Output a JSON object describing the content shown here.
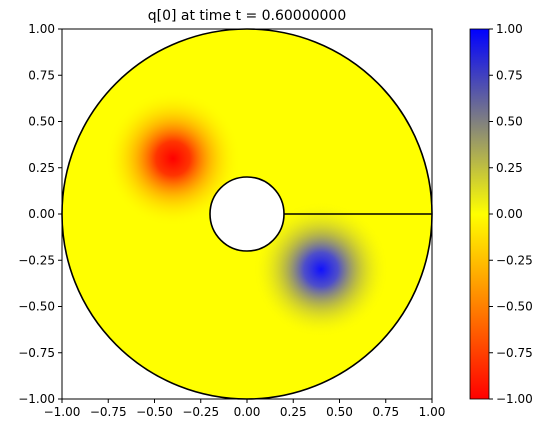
{
  "chart_data": {
    "type": "heatmap",
    "title": "q[0] at time t =     0.60000000",
    "xlabel": "",
    "ylabel": "",
    "xlim": [
      -1.0,
      1.0
    ],
    "ylim": [
      -1.0,
      1.0
    ],
    "x_ticks": [
      "−1.00",
      "−0.75",
      "−0.50",
      "−0.25",
      "0.00",
      "0.25",
      "0.50",
      "0.75",
      "1.00"
    ],
    "x_tick_values": [
      -1.0,
      -0.75,
      -0.5,
      -0.25,
      0.0,
      0.25,
      0.5,
      0.75,
      1.0
    ],
    "y_ticks": [
      "−1.00",
      "−0.75",
      "−0.50",
      "−0.25",
      "0.00",
      "0.25",
      "0.50",
      "0.75",
      "1.00"
    ],
    "y_tick_values": [
      -1.0,
      -0.75,
      -0.5,
      -0.25,
      0.0,
      0.25,
      0.5,
      0.75,
      1.0
    ],
    "domain": {
      "outer_radius": 1.0,
      "inner_radius": 0.2,
      "cut_line": {
        "from": [
          0.2,
          0.0
        ],
        "to": [
          1.0,
          0.0
        ]
      }
    },
    "features": [
      {
        "center": [
          -0.4,
          0.3
        ],
        "value": -1.0
      },
      {
        "center": [
          0.4,
          -0.3
        ],
        "value": 1.0
      }
    ],
    "background_value": 0.0,
    "colorbar": {
      "range": [
        -1.0,
        1.0
      ],
      "ticks": [
        "−1.00",
        "−0.75",
        "−0.50",
        "−0.25",
        "0.00",
        "0.25",
        "0.50",
        "0.75",
        "1.00"
      ],
      "tick_values": [
        -1.0,
        -0.75,
        -0.5,
        -0.25,
        0.0,
        0.25,
        0.5,
        0.75,
        1.0
      ],
      "colors": {
        "min": "#ff0000",
        "low_mid": "#ff8000",
        "zero": "#ffff00",
        "high_mid": "#808080",
        "max": "#0000ff"
      }
    }
  }
}
